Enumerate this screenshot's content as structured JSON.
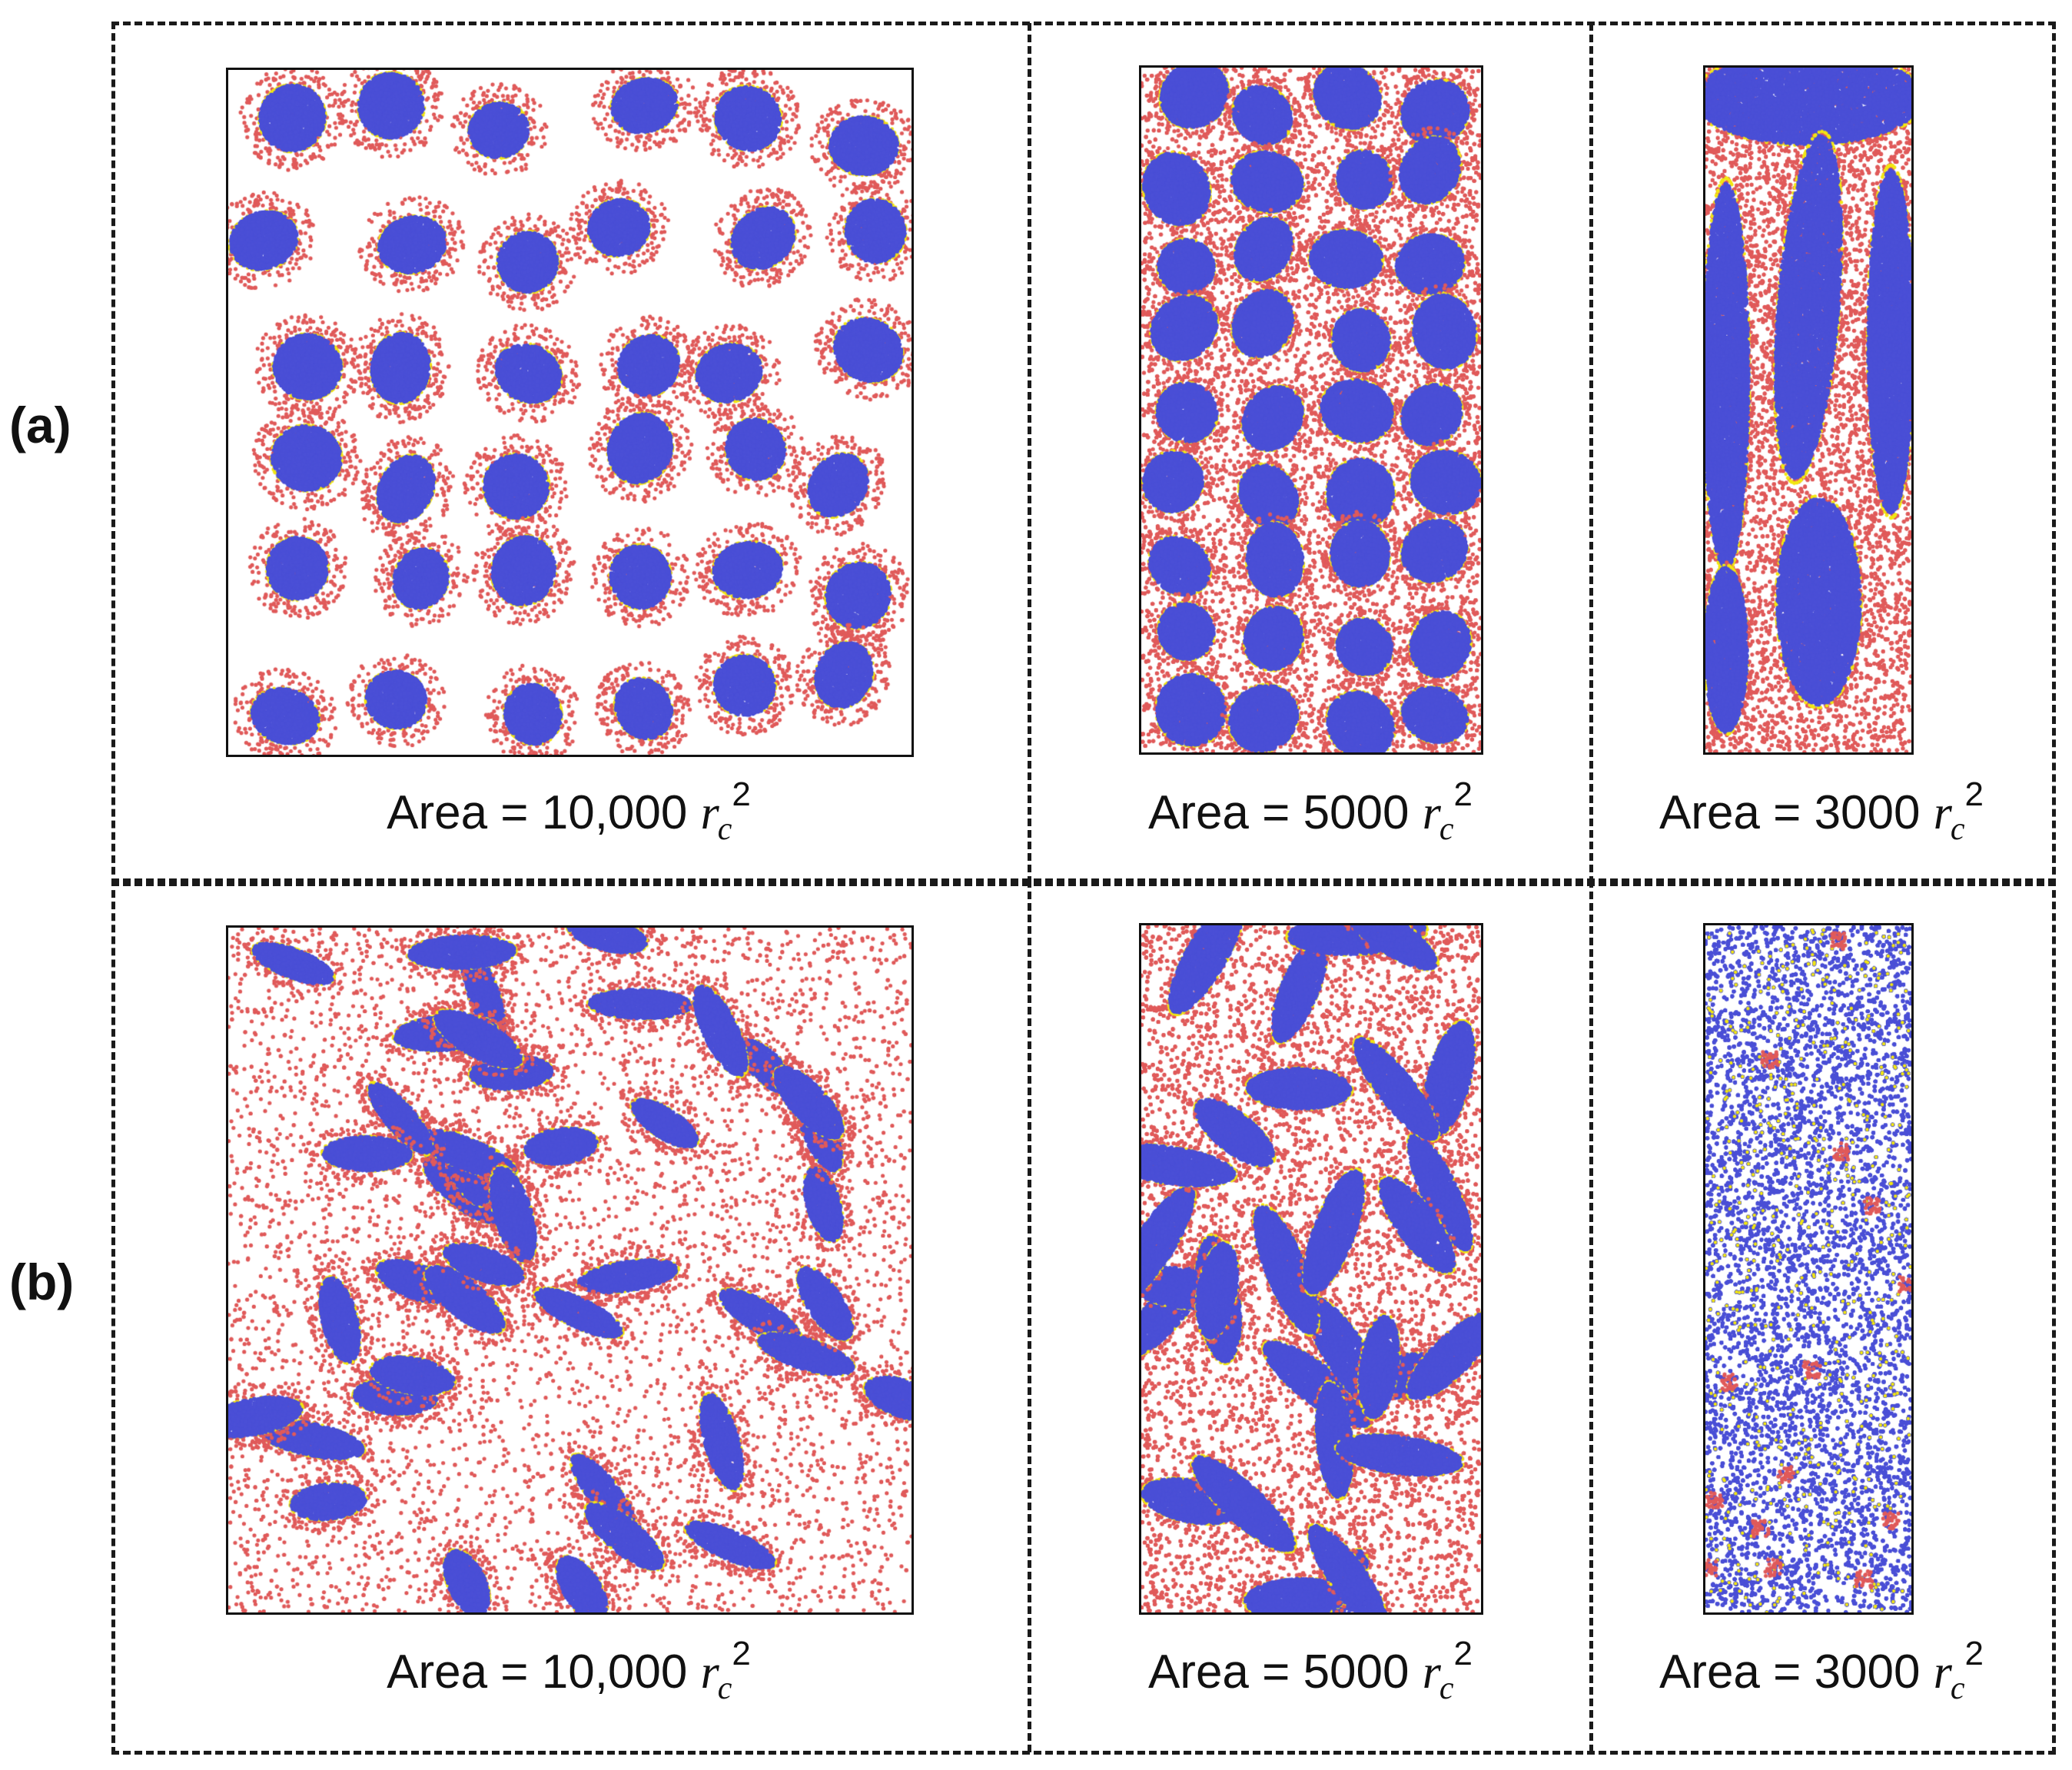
{
  "rows": [
    {
      "label": "(a)",
      "panels": [
        {
          "caption": {
            "prefix": "Area = ",
            "value": "10,000",
            "unit": "r",
            "unit_sub": "c",
            "unit_sup": "2"
          },
          "morphology": "isolated-micelles"
        },
        {
          "caption": {
            "prefix": "Area = ",
            "value": "5000",
            "unit": "r",
            "unit_sub": "c",
            "unit_sup": "2"
          },
          "morphology": "dense-micelles"
        },
        {
          "caption": {
            "prefix": "Area = ",
            "value": "3000",
            "unit": "r",
            "unit_sub": "c",
            "unit_sup": "2"
          },
          "morphology": "elongated-domains"
        }
      ]
    },
    {
      "label": "(b)",
      "panels": [
        {
          "caption": {
            "prefix": "Area = ",
            "value": "10,000",
            "unit": "r",
            "unit_sub": "c",
            "unit_sup": "2"
          },
          "morphology": "elongated-micelles"
        },
        {
          "caption": {
            "prefix": "Area = ",
            "value": "5000",
            "unit": "r",
            "unit_sub": "c",
            "unit_sup": "2"
          },
          "morphology": "network"
        },
        {
          "caption": {
            "prefix": "Area = ",
            "value": "3000",
            "unit": "r",
            "unit_sub": "c",
            "unit_sup": "2"
          },
          "morphology": "continuous"
        }
      ]
    }
  ],
  "colors": {
    "core": "#4a4fd6",
    "shell": "#e05a5a",
    "interface": "#f2e612",
    "frame": "#1a1a1a"
  }
}
